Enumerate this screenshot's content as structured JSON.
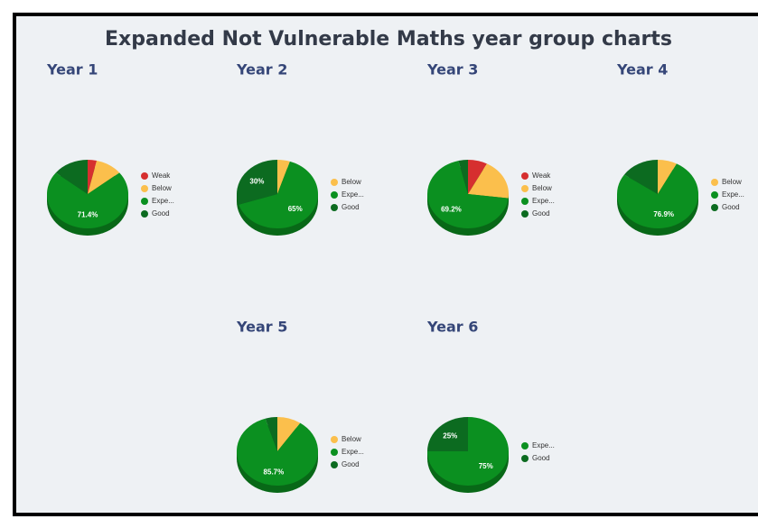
{
  "title": "Expanded Not Vulnerable Maths year group charts",
  "chart_data": [
    {
      "type": "pie",
      "title": "Year 1",
      "categories": [
        "Weak",
        "Below",
        "Expe...",
        "Good"
      ],
      "values": [
        3.6,
        10.7,
        71.4,
        14.3
      ],
      "value_labels": [
        null,
        null,
        "71.4%",
        null
      ],
      "colors": [
        "#d62f2f",
        "#fbbf4c",
        "#0b9020",
        "#0c6b20"
      ]
    },
    {
      "type": "pie",
      "title": "Year 2",
      "categories": [
        "Below",
        "Expe...",
        "Good"
      ],
      "values": [
        5,
        65,
        30
      ],
      "value_labels": [
        null,
        "65%",
        "30%"
      ],
      "colors": [
        "#fbbf4c",
        "#0b9020",
        "#0c6b20"
      ]
    },
    {
      "type": "pie",
      "title": "Year 3",
      "categories": [
        "Weak",
        "Below",
        "Expe...",
        "Good"
      ],
      "values": [
        7.7,
        19.2,
        69.2,
        3.8
      ],
      "value_labels": [
        null,
        null,
        "69.2%",
        null
      ],
      "colors": [
        "#d62f2f",
        "#fbbf4c",
        "#0b9020",
        "#0c6b20"
      ]
    },
    {
      "type": "pie",
      "title": "Year 4",
      "categories": [
        "Below",
        "Expe...",
        "Good"
      ],
      "values": [
        7.7,
        76.9,
        15.4
      ],
      "value_labels": [
        null,
        "76.9%",
        null
      ],
      "colors": [
        "#fbbf4c",
        "#0b9020",
        "#0c6b20"
      ]
    },
    {
      "type": "pie",
      "title": "Year 5",
      "categories": [
        "Below",
        "Expe...",
        "Good"
      ],
      "values": [
        9.5,
        85.7,
        4.8
      ],
      "value_labels": [
        null,
        "85.7%",
        null
      ],
      "colors": [
        "#fbbf4c",
        "#0b9020",
        "#0c6b20"
      ]
    },
    {
      "type": "pie",
      "title": "Year 6",
      "categories": [
        "Expe...",
        "Good"
      ],
      "values": [
        75,
        25
      ],
      "value_labels": [
        "75%",
        "25%"
      ],
      "colors": [
        "#0b9020",
        "#0c6b20"
      ]
    }
  ]
}
